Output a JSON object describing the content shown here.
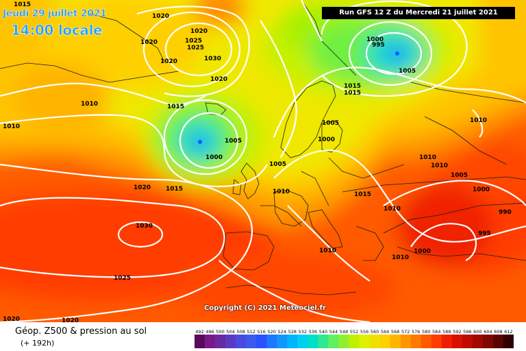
{
  "header": {
    "date": "Jeudi 29 juillet 2021",
    "time": "14:00 locale",
    "run": "Run GFS 12 Z du Mercredi 21 juillet 2021"
  },
  "footer": {
    "product": "Géop. Z500 & pression au sol",
    "horizon": "(+ 192h)",
    "copyright": "Copyright (C) 2021 Meteociel.fr"
  },
  "scale": {
    "values": [
      "492",
      "496",
      "500",
      "504",
      "508",
      "512",
      "516",
      "520",
      "524",
      "528",
      "532",
      "536",
      "540",
      "544",
      "548",
      "552",
      "556",
      "560",
      "564",
      "568",
      "572",
      "576",
      "580",
      "584",
      "588",
      "592",
      "596",
      "600",
      "604",
      "608",
      "612"
    ],
    "colors": [
      "#5a0a5a",
      "#7a1a8a",
      "#6a2aa0",
      "#5a3ac0",
      "#4a4ae0",
      "#3a5af0",
      "#2a50ff",
      "#1e78ff",
      "#1496ff",
      "#00b4ff",
      "#00d0f0",
      "#00e0c8",
      "#30e890",
      "#60f060",
      "#90f030",
      "#c0f000",
      "#e0f000",
      "#f0e000",
      "#ffd000",
      "#ffb400",
      "#ff9600",
      "#ff7800",
      "#ff5a00",
      "#ff3c00",
      "#f01e00",
      "#d81000",
      "#c00a00",
      "#a00800",
      "#800600",
      "#5a0400",
      "#300000"
    ]
  },
  "map": {
    "layers": {
      "geopotential_field": "Z500 colour field",
      "pressure_isobars": "sea-level pressure (hPa)",
      "borders": "coastlines and country borders"
    },
    "isobar_labels": [
      {
        "value": "1015"
      },
      {
        "value": "1020"
      },
      {
        "value": "1020"
      },
      {
        "value": "1020"
      },
      {
        "value": "1025"
      },
      {
        "value": "1030"
      },
      {
        "value": "1025"
      },
      {
        "value": "1020"
      },
      {
        "value": "1020"
      },
      {
        "value": "1010"
      },
      {
        "value": "1015"
      },
      {
        "value": "1010"
      },
      {
        "value": "1005"
      },
      {
        "value": "1000"
      },
      {
        "value": "1005"
      },
      {
        "value": "1020"
      },
      {
        "value": "1015"
      },
      {
        "value": "1010"
      },
      {
        "value": "1030"
      },
      {
        "value": "1025"
      },
      {
        "value": "1020"
      },
      {
        "value": "1020"
      },
      {
        "value": "1000"
      },
      {
        "value": "995"
      },
      {
        "value": "1005"
      },
      {
        "value": "1015"
      },
      {
        "value": "1015"
      },
      {
        "value": "1005"
      },
      {
        "value": "1000"
      },
      {
        "value": "1010"
      },
      {
        "value": "1015"
      },
      {
        "value": "1010"
      },
      {
        "value": "1010"
      },
      {
        "value": "1010"
      },
      {
        "value": "1005"
      },
      {
        "value": "1000"
      },
      {
        "value": "990"
      },
      {
        "value": "995"
      },
      {
        "value": "1000"
      },
      {
        "value": "1010"
      },
      {
        "value": "1010"
      }
    ]
  }
}
